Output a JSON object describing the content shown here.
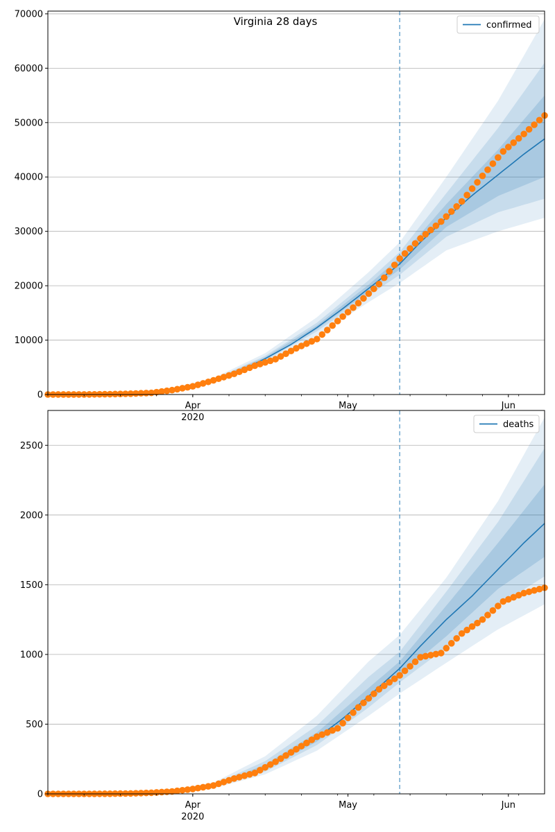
{
  "chart_data": [
    {
      "type": "line",
      "title": "Virginia 28 days",
      "xlabel": "",
      "ylabel": "",
      "ylim": [
        0,
        70500
      ],
      "x_range": [
        "2020-03-04",
        "2020-06-08"
      ],
      "forecast_start": "2020-05-11",
      "x_ticks": [
        {
          "date": "2020-04-01",
          "label": "Apr",
          "sublabel": "2020"
        },
        {
          "date": "2020-05-01",
          "label": "May",
          "sublabel": ""
        },
        {
          "date": "2020-06-01",
          "label": "Jun",
          "sublabel": ""
        }
      ],
      "y_ticks": [
        0,
        10000,
        20000,
        30000,
        40000,
        50000,
        60000,
        70000
      ],
      "y_tick_labels": [
        "0",
        "10000",
        "20000",
        "30000",
        "40000",
        "50000",
        "60000",
        "70000"
      ],
      "grid": "horizontal",
      "legend": {
        "position": "top-right",
        "entries": [
          {
            "label": "confirmed",
            "color": "#1f77b4"
          }
        ]
      },
      "series": [
        {
          "name": "confirmed",
          "kind": "model-median",
          "color": "#1f77b4",
          "x": [
            "2020-03-04",
            "2020-03-11",
            "2020-03-18",
            "2020-03-22",
            "2020-03-25",
            "2020-03-28",
            "2020-04-01",
            "2020-04-05",
            "2020-04-10",
            "2020-04-15",
            "2020-04-20",
            "2020-04-25",
            "2020-04-30",
            "2020-05-05",
            "2020-05-11",
            "2020-05-15",
            "2020-05-20",
            "2020-05-25",
            "2020-05-30",
            "2020-06-04",
            "2020-06-08"
          ],
          "values": [
            0,
            5,
            40,
            200,
            400,
            750,
            1500,
            2600,
            4300,
            6600,
            9200,
            12300,
            15800,
            19500,
            24000,
            28000,
            32500,
            36600,
            40400,
            44200,
            47000
          ]
        }
      ],
      "observed": {
        "color": "#ff7f0e",
        "x": [
          "2020-03-04",
          "2020-03-08",
          "2020-03-12",
          "2020-03-16",
          "2020-03-20",
          "2020-03-24",
          "2020-03-28",
          "2020-04-01",
          "2020-04-05",
          "2020-04-09",
          "2020-04-13",
          "2020-04-17",
          "2020-04-21",
          "2020-04-25",
          "2020-04-29",
          "2020-05-03",
          "2020-05-07",
          "2020-05-11",
          "2020-05-15",
          "2020-05-19",
          "2020-05-23",
          "2020-05-27",
          "2020-05-31",
          "2020-06-04",
          "2020-06-08"
        ],
        "values": [
          0,
          5,
          20,
          60,
          150,
          300,
          800,
          1500,
          2600,
          3800,
          5300,
          6500,
          8500,
          10200,
          13500,
          16800,
          20300,
          25000,
          28700,
          31800,
          35500,
          40200,
          44700,
          47900,
          51300
        ]
      },
      "bands": [
        {
          "x": [
            "2020-03-04",
            "2020-03-25",
            "2020-04-05",
            "2020-04-15",
            "2020-04-25",
            "2020-05-05",
            "2020-05-11",
            "2020-05-20",
            "2020-05-30",
            "2020-06-08"
          ],
          "low": [
            0,
            350,
            2300,
            5800,
            10800,
            17000,
            20500,
            26500,
            30000,
            32500
          ],
          "high": [
            0,
            480,
            3000,
            7600,
            14200,
            22500,
            28000,
            40000,
            54000,
            69000
          ],
          "opacity": 0.12
        },
        {
          "x": [
            "2020-03-04",
            "2020-03-25",
            "2020-04-05",
            "2020-04-15",
            "2020-04-25",
            "2020-05-05",
            "2020-05-11",
            "2020-05-20",
            "2020-05-30",
            "2020-06-08"
          ],
          "low": [
            0,
            375,
            2450,
            6200,
            11600,
            18200,
            22000,
            29000,
            33500,
            36000
          ],
          "high": [
            0,
            440,
            2800,
            7100,
            13200,
            21000,
            26200,
            37000,
            49000,
            61000
          ],
          "opacity": 0.15
        },
        {
          "x": [
            "2020-03-04",
            "2020-03-25",
            "2020-04-05",
            "2020-04-15",
            "2020-04-25",
            "2020-05-05",
            "2020-05-11",
            "2020-05-20",
            "2020-05-30",
            "2020-06-08"
          ],
          "low": [
            0,
            390,
            2530,
            6400,
            12000,
            18900,
            23000,
            30800,
            36500,
            40000
          ],
          "high": [
            0,
            420,
            2700,
            6850,
            12700,
            20200,
            25200,
            35000,
            45000,
            55000
          ],
          "opacity": 0.18
        }
      ]
    },
    {
      "type": "line",
      "title": "",
      "xlabel": "",
      "ylabel": "",
      "ylim": [
        0,
        2750
      ],
      "x_range": [
        "2020-03-04",
        "2020-06-08"
      ],
      "forecast_start": "2020-05-11",
      "x_ticks": [
        {
          "date": "2020-04-01",
          "label": "Apr",
          "sublabel": "2020"
        },
        {
          "date": "2020-05-01",
          "label": "May",
          "sublabel": ""
        },
        {
          "date": "2020-06-01",
          "label": "Jun",
          "sublabel": ""
        }
      ],
      "y_ticks": [
        0,
        500,
        1000,
        1500,
        2000,
        2500
      ],
      "y_tick_labels": [
        "0",
        "500",
        "1000",
        "1500",
        "2000",
        "2500"
      ],
      "grid": "horizontal",
      "legend": {
        "position": "top-right",
        "entries": [
          {
            "label": "deaths",
            "color": "#1f77b4"
          }
        ]
      },
      "series": [
        {
          "name": "deaths",
          "kind": "model-median",
          "color": "#1f77b4",
          "x": [
            "2020-03-04",
            "2020-03-18",
            "2020-03-25",
            "2020-04-01",
            "2020-04-05",
            "2020-04-10",
            "2020-04-15",
            "2020-04-20",
            "2020-04-25",
            "2020-04-30",
            "2020-05-05",
            "2020-05-11",
            "2020-05-15",
            "2020-05-20",
            "2020-05-25",
            "2020-05-30",
            "2020-06-04",
            "2020-06-08"
          ],
          "values": [
            0,
            1,
            8,
            28,
            55,
            110,
            190,
            290,
            400,
            540,
            700,
            900,
            1060,
            1250,
            1420,
            1610,
            1800,
            1940
          ]
        }
      ],
      "observed": {
        "color": "#ff7f0e",
        "x": [
          "2020-03-04",
          "2020-03-08",
          "2020-03-12",
          "2020-03-16",
          "2020-03-20",
          "2020-03-24",
          "2020-03-28",
          "2020-04-01",
          "2020-04-05",
          "2020-04-09",
          "2020-04-13",
          "2020-04-17",
          "2020-04-21",
          "2020-04-25",
          "2020-04-29",
          "2020-05-03",
          "2020-05-07",
          "2020-05-11",
          "2020-05-15",
          "2020-05-19",
          "2020-05-23",
          "2020-05-27",
          "2020-05-31",
          "2020-06-04",
          "2020-06-08"
        ],
        "values": [
          0,
          0,
          0,
          1,
          3,
          8,
          17,
          35,
          60,
          110,
          150,
          230,
          320,
          410,
          470,
          620,
          750,
          850,
          980,
          1010,
          1150,
          1250,
          1380,
          1440,
          1478
        ]
      },
      "bands": [
        {
          "x": [
            "2020-03-04",
            "2020-03-25",
            "2020-04-05",
            "2020-04-15",
            "2020-04-25",
            "2020-05-05",
            "2020-05-11",
            "2020-05-20",
            "2020-05-30",
            "2020-06-08"
          ],
          "low": [
            0,
            5,
            40,
            140,
            310,
            560,
            720,
            940,
            1180,
            1360
          ],
          "high": [
            0,
            12,
            80,
            270,
            560,
            950,
            1140,
            1550,
            2100,
            2700
          ],
          "opacity": 0.12
        },
        {
          "x": [
            "2020-03-04",
            "2020-03-25",
            "2020-04-05",
            "2020-04-15",
            "2020-04-25",
            "2020-05-05",
            "2020-05-11",
            "2020-05-20",
            "2020-05-30",
            "2020-06-08"
          ],
          "low": [
            0,
            6,
            46,
            160,
            350,
            620,
            800,
            1050,
            1350,
            1560
          ],
          "high": [
            0,
            10,
            68,
            235,
            490,
            840,
            1020,
            1450,
            1950,
            2480
          ],
          "opacity": 0.15
        },
        {
          "x": [
            "2020-03-04",
            "2020-03-25",
            "2020-04-05",
            "2020-04-15",
            "2020-04-25",
            "2020-05-05",
            "2020-05-11",
            "2020-05-20",
            "2020-05-30",
            "2020-06-08"
          ],
          "low": [
            0,
            7,
            50,
            175,
            375,
            660,
            850,
            1130,
            1470,
            1700
          ],
          "high": [
            0,
            9,
            62,
            210,
            440,
            760,
            950,
            1350,
            1800,
            2220
          ],
          "opacity": 0.18
        }
      ]
    }
  ]
}
